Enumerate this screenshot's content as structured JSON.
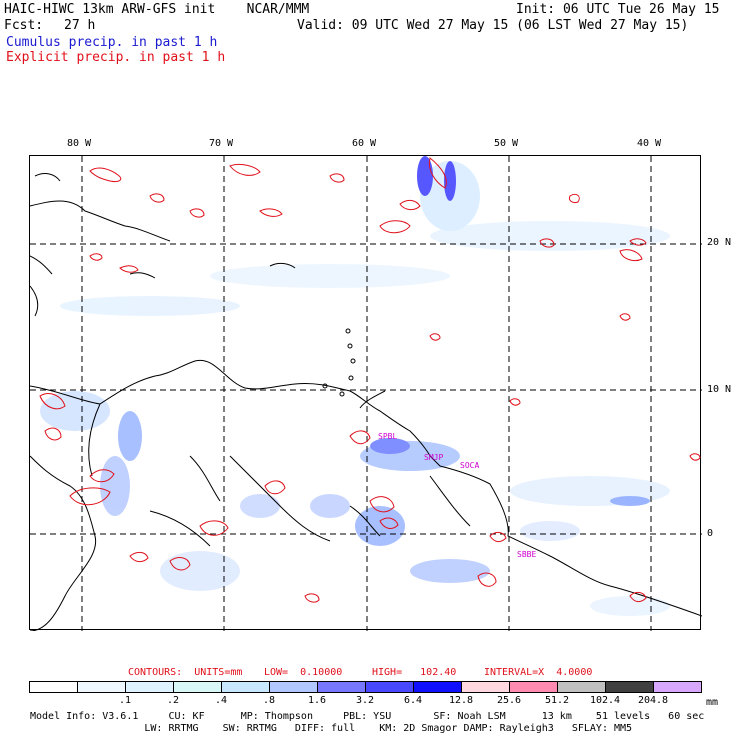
{
  "header": {
    "title": "HAIC-HIWC 13km ARW-GFS init    NCAR/MMM",
    "init": "Init: 06 UTC Tue 26 May 15",
    "fcst_label": "Fcst:",
    "fcst_value": "27 h",
    "valid": "Valid: 09 UTC Wed 27 May 15 (06 LST Wed 27 May 15)",
    "legend_cumulus": "Cumulus precip. in past 1 h",
    "legend_explicit": "Explicit precip. in past 1 h"
  },
  "map": {
    "lon_labels": [
      "80 W",
      "70 W",
      "60 W",
      "50 W",
      "40 W"
    ],
    "lat_labels": [
      "20 N",
      "10 N",
      "0"
    ],
    "site_labels": [
      "SPBL",
      "SMJP",
      "SOCA",
      "SBBE"
    ],
    "colors": {
      "contour": "#e0101a",
      "gridline": "#000000",
      "coast": "#000000"
    }
  },
  "contours": {
    "units": "CONTOURS:  UNITS=mm",
    "low": "LOW=  0.10000",
    "high": "HIGH=   102.40",
    "interval": "INTERVAL=X  4.0000"
  },
  "colorbar": {
    "ticks": [
      ".1",
      ".2",
      ".4",
      ".8",
      "1.6",
      "3.2",
      "6.4",
      "12.8",
      "25.6",
      "51.2",
      "102.4",
      "204.8"
    ],
    "unit": "mm",
    "colors": [
      "#ffffff",
      "#f0f8ff",
      "#dff2ff",
      "#d8f8f8",
      "#c8e8ff",
      "#b0c8ff",
      "#7878ff",
      "#4848ff",
      "#1010ff",
      "#ffd8e0",
      "#ff8cb0",
      "#c0c0c0",
      "#404040",
      "#d8a8ff"
    ]
  },
  "model_info": {
    "line1": "Model Info: V3.6.1     CU: KF      MP: Thompson     PBL: YSU       SF: Noah LSM      13 km    51 levels   60 sec",
    "line2": "                   LW: RRTMG    SW: RRTMG   DIFF: full    KM: 2D Smagor DAMP: Rayleigh3   SFLAY: MM5"
  }
}
